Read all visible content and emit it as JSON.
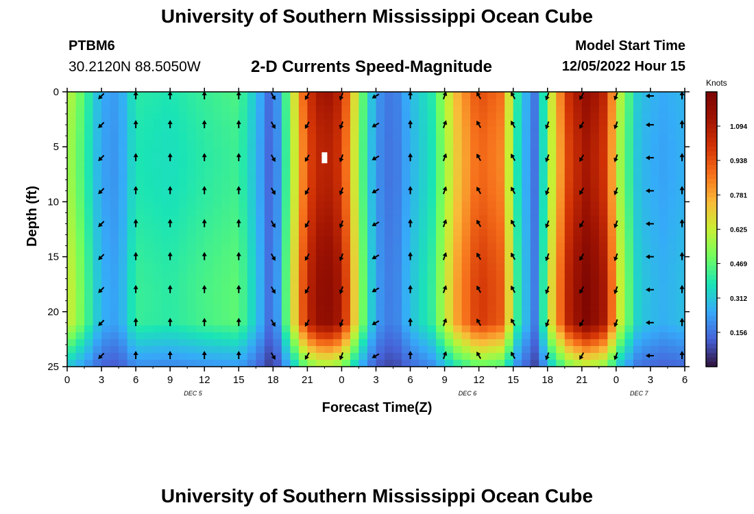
{
  "header": {
    "title": "University of Southern Mississippi Ocean Cube",
    "station": "PTBM6",
    "coords": "30.2120N  88.5050W",
    "plot_title": "2-D Currents Speed-Magnitude",
    "start_label": "Model Start Time",
    "start_value": "12/05/2022 Hour 15"
  },
  "footer": {
    "title": "University of Southern Mississippi Ocean Cube"
  },
  "chart_data": {
    "type": "heatmap",
    "title": "2-D Currents Speed-Magnitude",
    "xlabel": "Forecast Time(Z)",
    "ylabel": "Depth (ft)",
    "x_tick_labels": [
      "0",
      "3",
      "6",
      "9",
      "12",
      "15",
      "18",
      "21",
      "0",
      "3",
      "6",
      "9",
      "12",
      "15",
      "18",
      "21",
      "0",
      "3",
      "6"
    ],
    "x_range": [
      0,
      54
    ],
    "y_ticks": [
      0,
      5,
      10,
      15,
      20,
      25
    ],
    "y_range": [
      0,
      25
    ],
    "date_labels": [
      {
        "text": "DEC 5",
        "hour": 11
      },
      {
        "text": "DEC 6",
        "hour": 35
      },
      {
        "text": "DEC 7",
        "hour": 50
      }
    ],
    "colorbar": {
      "label": "Knots",
      "ticks": [
        "1.094",
        "0.938",
        "0.781",
        "0.625",
        "0.469",
        "0.312",
        "0.156"
      ],
      "tick_values": [
        1.094,
        0.938,
        0.781,
        0.625,
        0.469,
        0.312,
        0.156
      ],
      "range": [
        0,
        1.25
      ]
    },
    "speed_profile_by_hour": [
      {
        "hour": 0,
        "speed": 0.62
      },
      {
        "hour": 1.5,
        "speed": 0.45
      },
      {
        "hour": 3,
        "speed": 0.25
      },
      {
        "hour": 4.5,
        "speed": 0.22
      },
      {
        "hour": 6,
        "speed": 0.4
      },
      {
        "hour": 9,
        "speed": 0.38
      },
      {
        "hour": 12,
        "speed": 0.42
      },
      {
        "hour": 15,
        "speed": 0.45
      },
      {
        "hour": 16.5,
        "speed": 0.3
      },
      {
        "hour": 18,
        "speed": 0.1
      },
      {
        "hour": 19.5,
        "speed": 0.55
      },
      {
        "hour": 21,
        "speed": 1.0
      },
      {
        "hour": 22.5,
        "speed": 1.15
      },
      {
        "hour": 24,
        "speed": 1.05
      },
      {
        "hour": 25.5,
        "speed": 0.55
      },
      {
        "hour": 27,
        "speed": 0.22
      },
      {
        "hour": 28.5,
        "speed": 0.15
      },
      {
        "hour": 30,
        "speed": 0.28
      },
      {
        "hour": 32,
        "speed": 0.4
      },
      {
        "hour": 34,
        "speed": 0.75
      },
      {
        "hour": 36,
        "speed": 0.95
      },
      {
        "hour": 38,
        "speed": 0.88
      },
      {
        "hour": 39.5,
        "speed": 0.35
      },
      {
        "hour": 41,
        "speed": 0.15
      },
      {
        "hour": 42.5,
        "speed": 0.7
      },
      {
        "hour": 44,
        "speed": 1.05
      },
      {
        "hour": 45.5,
        "speed": 1.18
      },
      {
        "hour": 47,
        "speed": 1.05
      },
      {
        "hour": 48.5,
        "speed": 0.55
      },
      {
        "hour": 50,
        "speed": 0.3
      },
      {
        "hour": 52,
        "speed": 0.25
      },
      {
        "hour": 54,
        "speed": 0.28
      }
    ],
    "arrow_depths_ft": [
      0,
      3,
      6,
      9,
      12,
      15,
      18,
      21,
      24
    ],
    "arrow_hours": [
      3,
      6,
      9,
      12,
      15,
      18,
      21,
      24,
      27,
      30,
      33,
      36,
      39,
      42,
      45,
      48,
      51,
      54
    ],
    "arrow_direction_by_hour_deg": [
      {
        "hour": 3,
        "dir": 225
      },
      {
        "hour": 6,
        "dir": 0
      },
      {
        "hour": 9,
        "dir": 0
      },
      {
        "hour": 12,
        "dir": 0
      },
      {
        "hour": 15,
        "dir": 0
      },
      {
        "hour": 18,
        "dir": 150
      },
      {
        "hour": 21,
        "dir": 210
      },
      {
        "hour": 24,
        "dir": 200
      },
      {
        "hour": 27,
        "dir": 240
      },
      {
        "hour": 30,
        "dir": 0
      },
      {
        "hour": 33,
        "dir": 20
      },
      {
        "hour": 36,
        "dir": 330
      },
      {
        "hour": 39,
        "dir": 330
      },
      {
        "hour": 42,
        "dir": 200
      },
      {
        "hour": 45,
        "dir": 210
      },
      {
        "hour": 48,
        "dir": 200
      },
      {
        "hour": 51,
        "dir": 270
      },
      {
        "hour": 54,
        "dir": 0
      }
    ]
  }
}
